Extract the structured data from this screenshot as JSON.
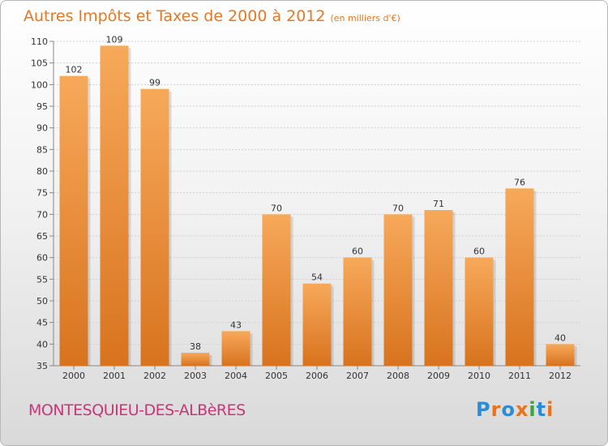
{
  "header": {
    "title": "Autres Impôts et Taxes de 2000 à 2012",
    "subtitle": "(en milliers d'€)"
  },
  "commune": "MONTESQUIEU-DES-ALBèRES",
  "logo": {
    "letters": [
      "P",
      "r",
      "o",
      "x",
      "i",
      "t",
      "i"
    ],
    "colors": [
      "#2a8bd8",
      "#e8731a",
      "#2a8bd8",
      "#e8731a",
      "#3aa33a",
      "#2a8bd8",
      "#e8731a"
    ]
  },
  "colors": {
    "bar_light": "#f7a95a",
    "bar_dark": "#d8731f",
    "title": "#e87722",
    "commune": "#c8367a"
  },
  "chart_data": {
    "type": "bar",
    "categories": [
      "2000",
      "2001",
      "2002",
      "2003",
      "2004",
      "2005",
      "2006",
      "2007",
      "2008",
      "2009",
      "2010",
      "2011",
      "2012"
    ],
    "values": [
      102,
      109,
      99,
      38,
      43,
      70,
      54,
      60,
      70,
      71,
      60,
      76,
      40
    ],
    "ylim": [
      35,
      110
    ],
    "yticks": [
      35,
      40,
      45,
      50,
      55,
      60,
      65,
      70,
      75,
      80,
      85,
      90,
      95,
      100,
      105,
      110
    ],
    "grid": true
  }
}
